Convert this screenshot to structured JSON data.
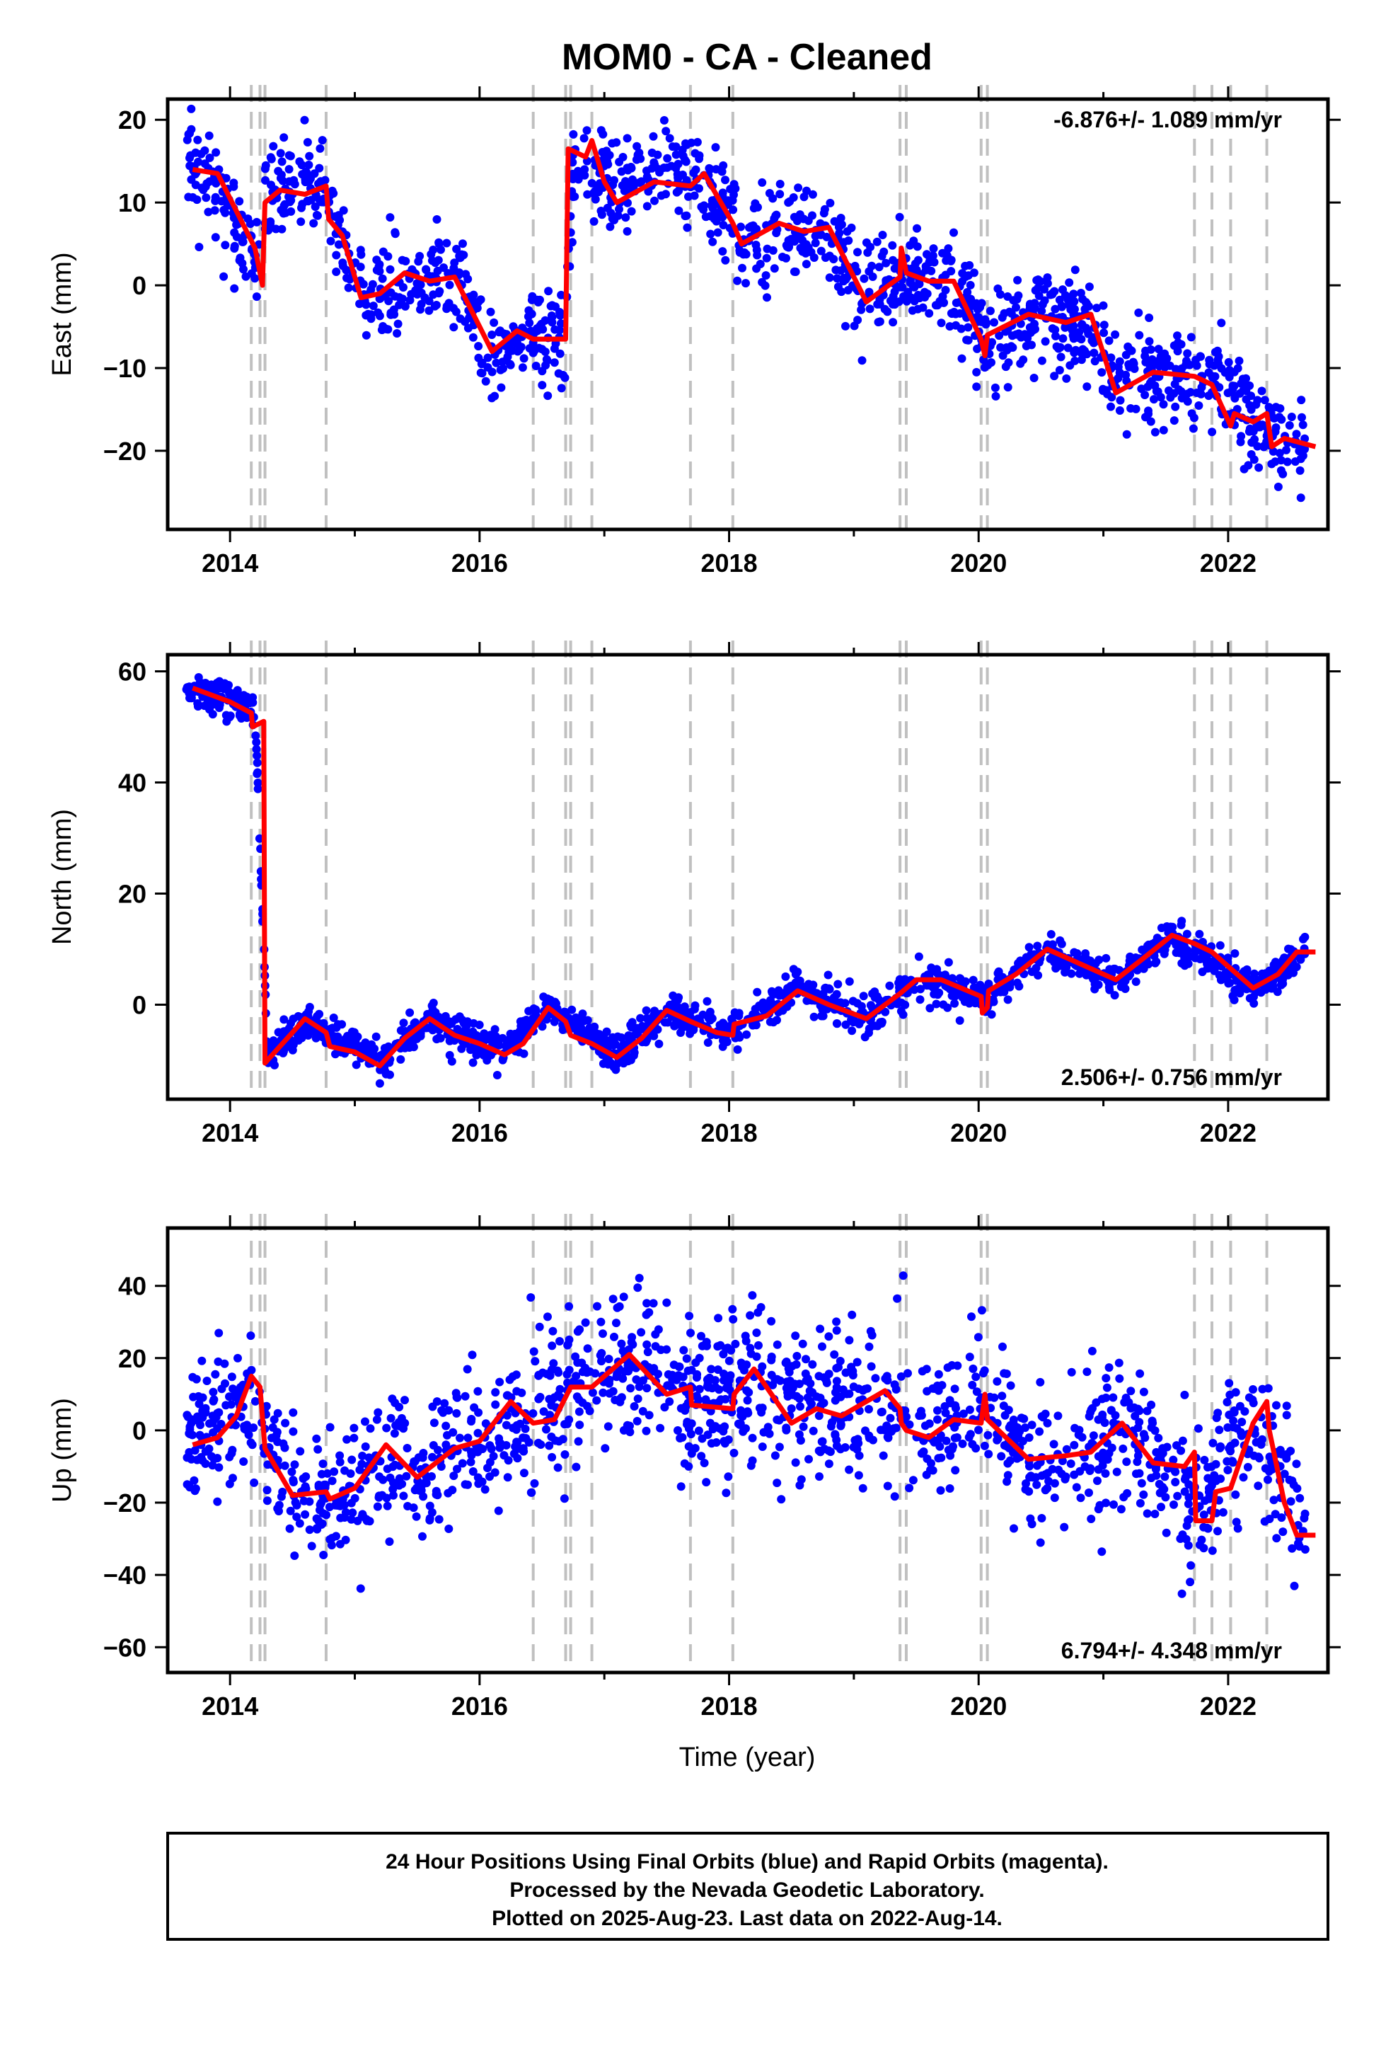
{
  "figure": {
    "title": "MOM0  - CA - Cleaned",
    "xlabel": "Time (year)",
    "footer_lines": [
      "24 Hour Positions Using Final Orbits (blue) and Rapid Orbits (magenta).",
      "Processed by the Nevada Geodetic Laboratory.",
      "Plotted on 2025-Aug-23. Last data on 2022-Aug-14."
    ]
  },
  "colors": {
    "points": "#0000ff",
    "model": "#ff0000",
    "event_lines": "#c0c0c0",
    "axes": "#000000"
  },
  "chart_data": [
    {
      "type": "scatter",
      "name": "east",
      "ylabel": "East (mm)",
      "rate_text": "-6.876+/- 1.089 mm/yr",
      "rate_position": "top-right",
      "xlim": [
        2013.5,
        2022.8
      ],
      "ylim": [
        -29.5,
        22.5
      ],
      "xticks": [
        2014,
        2016,
        2018,
        2020,
        2022
      ],
      "yticks": [
        -20,
        -10,
        0,
        10,
        20
      ],
      "ytick_labels": [
        "−20",
        "−10",
        "0",
        "10",
        "20"
      ],
      "event_lines": [
        2014.17,
        2014.24,
        2014.28,
        2014.77,
        2016.43,
        2016.69,
        2016.73,
        2016.9,
        2017.69,
        2018.03,
        2019.37,
        2019.42,
        2020.02,
        2020.07,
        2021.73,
        2021.87,
        2022.02,
        2022.31
      ],
      "model": [
        [
          2013.7,
          14.0
        ],
        [
          2013.9,
          13.5
        ],
        [
          2014.1,
          7.5
        ],
        [
          2014.2,
          4.5
        ],
        [
          2014.26,
          0.0
        ],
        [
          2014.28,
          10.0
        ],
        [
          2014.4,
          11.5
        ],
        [
          2014.6,
          11.0
        ],
        [
          2014.77,
          12.0
        ],
        [
          2014.79,
          8.0
        ],
        [
          2014.9,
          6.0
        ],
        [
          2015.05,
          -1.5
        ],
        [
          2015.2,
          -1.0
        ],
        [
          2015.4,
          1.5
        ],
        [
          2015.6,
          0.5
        ],
        [
          2015.8,
          1.0
        ],
        [
          2016.0,
          -5.0
        ],
        [
          2016.1,
          -8.0
        ],
        [
          2016.3,
          -5.5
        ],
        [
          2016.43,
          -6.5
        ],
        [
          2016.69,
          -6.5
        ],
        [
          2016.71,
          16.5
        ],
        [
          2016.85,
          15.5
        ],
        [
          2016.9,
          17.5
        ],
        [
          2017.0,
          12.5
        ],
        [
          2017.1,
          10.0
        ],
        [
          2017.4,
          12.5
        ],
        [
          2017.69,
          12.0
        ],
        [
          2017.8,
          13.5
        ],
        [
          2018.03,
          7.5
        ],
        [
          2018.1,
          5.0
        ],
        [
          2018.4,
          7.5
        ],
        [
          2018.6,
          6.5
        ],
        [
          2018.8,
          7.0
        ],
        [
          2019.1,
          -2.0
        ],
        [
          2019.37,
          1.0
        ],
        [
          2019.38,
          4.5
        ],
        [
          2019.42,
          1.5
        ],
        [
          2019.6,
          0.5
        ],
        [
          2019.8,
          0.5
        ],
        [
          2020.02,
          -6.5
        ],
        [
          2020.05,
          -8.5
        ],
        [
          2020.07,
          -6.0
        ],
        [
          2020.4,
          -3.5
        ],
        [
          2020.7,
          -4.5
        ],
        [
          2020.9,
          -3.5
        ],
        [
          2021.1,
          -13.0
        ],
        [
          2021.4,
          -10.5
        ],
        [
          2021.73,
          -11.0
        ],
        [
          2021.87,
          -12.0
        ],
        [
          2022.02,
          -17.0
        ],
        [
          2022.05,
          -15.5
        ],
        [
          2022.2,
          -16.5
        ],
        [
          2022.31,
          -15.5
        ],
        [
          2022.35,
          -19.5
        ],
        [
          2022.45,
          -18.5
        ],
        [
          2022.7,
          -19.5
        ]
      ],
      "series": [
        {
          "values_note": "",
          "anchors": [
            [
              2013.65,
              16
            ],
            [
              2013.9,
              12
            ],
            [
              2014.2,
              2
            ],
            [
              2014.3,
              12
            ],
            [
              2014.77,
              11
            ],
            [
              2014.9,
              5
            ],
            [
              2015.1,
              -2
            ],
            [
              2015.5,
              1
            ],
            [
              2015.85,
              0
            ],
            [
              2016.1,
              -10
            ],
            [
              2016.35,
              -6
            ],
            [
              2016.68,
              -7
            ],
            [
              2016.75,
              14
            ],
            [
              2017.1,
              11
            ],
            [
              2017.5,
              14
            ],
            [
              2017.8,
              12
            ],
            [
              2018.2,
              5
            ],
            [
              2018.5,
              7
            ],
            [
              2018.9,
              4
            ],
            [
              2019.1,
              -2
            ],
            [
              2019.4,
              2
            ],
            [
              2019.8,
              0
            ],
            [
              2020.1,
              -7
            ],
            [
              2020.5,
              -4
            ],
            [
              2020.9,
              -5
            ],
            [
              2021.1,
              -12
            ],
            [
              2021.5,
              -10
            ],
            [
              2021.9,
              -12
            ],
            [
              2022.2,
              -16
            ],
            [
              2022.7,
              -21
            ]
          ],
          "scatter_sd": 2.8,
          "n": 1500
        }
      ]
    },
    {
      "type": "scatter",
      "name": "north",
      "ylabel": "North (mm)",
      "rate_text": "2.506+/- 0.756 mm/yr",
      "rate_position": "bottom-right",
      "xlim": [
        2013.5,
        2022.8
      ],
      "ylim": [
        -17,
        63
      ],
      "xticks": [
        2014,
        2016,
        2018,
        2020,
        2022
      ],
      "yticks": [
        0,
        20,
        40,
        60
      ],
      "ytick_labels": [
        "0",
        "20",
        "40",
        "60"
      ],
      "event_lines": [
        2014.17,
        2014.24,
        2014.28,
        2014.77,
        2016.43,
        2016.69,
        2016.73,
        2016.9,
        2017.69,
        2018.03,
        2019.37,
        2019.42,
        2020.02,
        2020.07,
        2021.73,
        2021.87,
        2022.02,
        2022.31
      ],
      "model": [
        [
          2013.7,
          57.0
        ],
        [
          2014.0,
          54.5
        ],
        [
          2014.17,
          52.5
        ],
        [
          2014.18,
          50.0
        ],
        [
          2014.27,
          51.0
        ],
        [
          2014.28,
          -10.5
        ],
        [
          2014.4,
          -7.5
        ],
        [
          2014.6,
          -2.5
        ],
        [
          2014.77,
          -5.0
        ],
        [
          2014.8,
          -7.5
        ],
        [
          2015.0,
          -8.5
        ],
        [
          2015.2,
          -11.0
        ],
        [
          2015.4,
          -6.0
        ],
        [
          2015.6,
          -2.5
        ],
        [
          2015.8,
          -5.5
        ],
        [
          2016.0,
          -7.0
        ],
        [
          2016.2,
          -9.0
        ],
        [
          2016.35,
          -7.0
        ],
        [
          2016.55,
          -0.5
        ],
        [
          2016.69,
          -3.0
        ],
        [
          2016.73,
          -5.5
        ],
        [
          2016.9,
          -7.0
        ],
        [
          2017.1,
          -9.5
        ],
        [
          2017.3,
          -6.0
        ],
        [
          2017.5,
          -1.0
        ],
        [
          2017.69,
          -3.0
        ],
        [
          2017.9,
          -5.0
        ],
        [
          2018.03,
          -5.5
        ],
        [
          2018.04,
          -3.5
        ],
        [
          2018.3,
          -2.0
        ],
        [
          2018.55,
          2.5
        ],
        [
          2018.8,
          0.0
        ],
        [
          2019.1,
          -2.5
        ],
        [
          2019.37,
          2.0
        ],
        [
          2019.5,
          4.5
        ],
        [
          2019.7,
          4.5
        ],
        [
          2020.02,
          1.5
        ],
        [
          2020.03,
          -1.5
        ],
        [
          2020.07,
          -0.5
        ],
        [
          2020.08,
          2.5
        ],
        [
          2020.3,
          5.5
        ],
        [
          2020.55,
          10.0
        ],
        [
          2020.8,
          7.5
        ],
        [
          2021.1,
          4.5
        ],
        [
          2021.3,
          8.0
        ],
        [
          2021.55,
          12.5
        ],
        [
          2021.73,
          11.0
        ],
        [
          2021.87,
          9.5
        ],
        [
          2022.02,
          6.5
        ],
        [
          2022.2,
          3.0
        ],
        [
          2022.4,
          5.5
        ],
        [
          2022.55,
          9.5
        ],
        [
          2022.7,
          9.5
        ]
      ],
      "series": [
        {
          "anchors": [
            [
              2013.65,
              57.5
            ],
            [
              2014.2,
              53
            ],
            [
              2014.3,
              -9
            ],
            [
              2014.6,
              -3
            ],
            [
              2015.2,
              -10
            ],
            [
              2015.6,
              -3
            ],
            [
              2016.2,
              -9
            ],
            [
              2016.55,
              0
            ],
            [
              2017.1,
              -9
            ],
            [
              2017.5,
              -1
            ],
            [
              2018.0,
              -5
            ],
            [
              2018.55,
              3
            ],
            [
              2019.1,
              -3
            ],
            [
              2019.5,
              5
            ],
            [
              2020.05,
              1
            ],
            [
              2020.55,
              10
            ],
            [
              2021.1,
              4
            ],
            [
              2021.55,
              12
            ],
            [
              2022.2,
              3
            ],
            [
              2022.7,
              10
            ]
          ],
          "scatter_sd": 1.6,
          "n": 1500
        }
      ]
    },
    {
      "type": "scatter",
      "name": "up",
      "ylabel": "Up (mm)",
      "rate_text": "6.794+/- 4.348 mm/yr",
      "rate_position": "bottom-right",
      "xlim": [
        2013.5,
        2022.8
      ],
      "ylim": [
        -67,
        56
      ],
      "xticks": [
        2014,
        2016,
        2018,
        2020,
        2022
      ],
      "yticks": [
        -60,
        -40,
        -20,
        0,
        20,
        40
      ],
      "ytick_labels": [
        "−60",
        "−40",
        "−20",
        "0",
        "20",
        "40"
      ],
      "event_lines": [
        2014.17,
        2014.24,
        2014.28,
        2014.77,
        2016.43,
        2016.69,
        2016.73,
        2016.9,
        2017.69,
        2018.03,
        2019.37,
        2019.42,
        2020.02,
        2020.07,
        2021.73,
        2021.87,
        2022.02,
        2022.31
      ],
      "model": [
        [
          2013.7,
          -4.0
        ],
        [
          2013.9,
          -2.0
        ],
        [
          2014.05,
          4.0
        ],
        [
          2014.17,
          15.0
        ],
        [
          2014.24,
          12.0
        ],
        [
          2014.28,
          -5.0
        ],
        [
          2014.5,
          -18.0
        ],
        [
          2014.77,
          -17.0
        ],
        [
          2014.8,
          -19.0
        ],
        [
          2015.0,
          -16.0
        ],
        [
          2015.25,
          -4.0
        ],
        [
          2015.5,
          -13.0
        ],
        [
          2015.8,
          -5.0
        ],
        [
          2016.0,
          -3.0
        ],
        [
          2016.25,
          8.0
        ],
        [
          2016.43,
          2.0
        ],
        [
          2016.6,
          3.0
        ],
        [
          2016.73,
          12.0
        ],
        [
          2016.9,
          12.0
        ],
        [
          2017.2,
          21.0
        ],
        [
          2017.5,
          10.0
        ],
        [
          2017.69,
          12.0
        ],
        [
          2017.7,
          7.0
        ],
        [
          2018.03,
          6.0
        ],
        [
          2018.04,
          10.0
        ],
        [
          2018.2,
          17.0
        ],
        [
          2018.5,
          2.0
        ],
        [
          2018.7,
          6.0
        ],
        [
          2018.9,
          4.0
        ],
        [
          2019.25,
          11.0
        ],
        [
          2019.37,
          6.0
        ],
        [
          2019.38,
          2.0
        ],
        [
          2019.42,
          0.0
        ],
        [
          2019.6,
          -2.0
        ],
        [
          2019.8,
          3.0
        ],
        [
          2020.02,
          2.0
        ],
        [
          2020.05,
          10.0
        ],
        [
          2020.07,
          3.0
        ],
        [
          2020.4,
          -8.0
        ],
        [
          2020.7,
          -7.0
        ],
        [
          2020.9,
          -6.0
        ],
        [
          2021.15,
          2.0
        ],
        [
          2021.4,
          -9.0
        ],
        [
          2021.65,
          -10.0
        ],
        [
          2021.73,
          -6.0
        ],
        [
          2021.74,
          -25.0
        ],
        [
          2021.87,
          -25.0
        ],
        [
          2021.9,
          -17.0
        ],
        [
          2022.02,
          -16.0
        ],
        [
          2022.2,
          2.0
        ],
        [
          2022.31,
          8.0
        ],
        [
          2022.33,
          0.0
        ],
        [
          2022.45,
          -20.0
        ],
        [
          2022.55,
          -29.0
        ],
        [
          2022.7,
          -29.0
        ]
      ],
      "series": [
        {
          "anchors": [
            [
              2013.65,
              -3
            ],
            [
              2014.1,
              8
            ],
            [
              2014.3,
              -5
            ],
            [
              2014.6,
              -20
            ],
            [
              2014.9,
              -18
            ],
            [
              2015.25,
              -5
            ],
            [
              2015.5,
              -12
            ],
            [
              2016.0,
              -2
            ],
            [
              2016.5,
              5
            ],
            [
              2017.2,
              18
            ],
            [
              2017.6,
              8
            ],
            [
              2018.2,
              12
            ],
            [
              2018.7,
              4
            ],
            [
              2019.25,
              10
            ],
            [
              2019.6,
              -2
            ],
            [
              2020.05,
              8
            ],
            [
              2020.4,
              -10
            ],
            [
              2020.9,
              -6
            ],
            [
              2021.15,
              2
            ],
            [
              2021.5,
              -10
            ],
            [
              2021.8,
              -20
            ],
            [
              2022.2,
              3
            ],
            [
              2022.6,
              -25
            ]
          ],
          "scatter_sd": 10.0,
          "n": 1500
        }
      ]
    }
  ]
}
